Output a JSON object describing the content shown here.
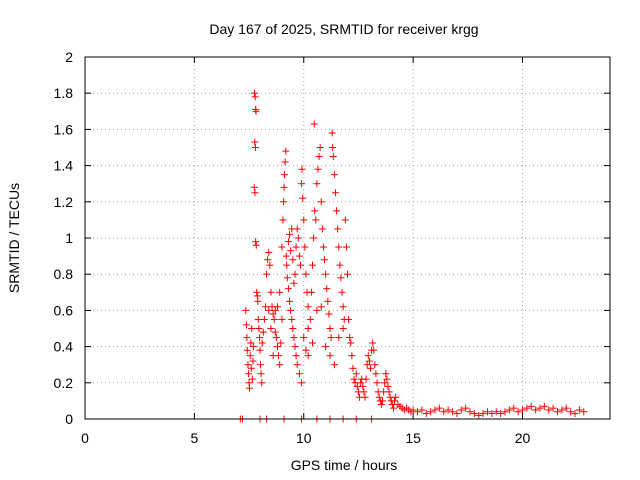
{
  "chart_data": {
    "type": "scatter",
    "title": "Day 167 of 2025, SRMTID for receiver krgg",
    "xlabel": "GPS time / hours",
    "ylabel": "SRMTID / TECUs",
    "xlim": [
      0,
      24
    ],
    "ylim": [
      0,
      2
    ],
    "xticks": [
      0,
      5,
      10,
      15,
      20
    ],
    "xtick_labels": [
      "0",
      "5",
      "10",
      "15",
      "20"
    ],
    "yticks": [
      0,
      0.2,
      0.4,
      0.6,
      0.8,
      1,
      1.2,
      1.4,
      1.6,
      1.8,
      2
    ],
    "ytick_labels": [
      "0",
      "0.2",
      "0.4",
      "0.6",
      "0.8",
      "1",
      "1.2",
      "1.4",
      "1.6",
      "1.8",
      "2"
    ],
    "grid": true,
    "marker": "+",
    "color": "#ff0000",
    "series": [
      {
        "name": "SRMTID",
        "points": [
          [
            7.1,
            0.0
          ],
          [
            7.2,
            0.0
          ],
          [
            8.0,
            0.0
          ],
          [
            8.3,
            0.0
          ],
          [
            9.1,
            0.0
          ],
          [
            9.9,
            0.0
          ],
          [
            10.6,
            0.0
          ],
          [
            11.2,
            0.0
          ],
          [
            11.8,
            0.0
          ],
          [
            12.4,
            0.0
          ],
          [
            13.1,
            0.0
          ],
          [
            7.35,
            0.6
          ],
          [
            7.38,
            0.52
          ],
          [
            7.4,
            0.45
          ],
          [
            7.42,
            0.38
          ],
          [
            7.45,
            0.3
          ],
          [
            7.48,
            0.25
          ],
          [
            7.5,
            0.2
          ],
          [
            7.52,
            0.17
          ],
          [
            7.55,
            0.35
          ],
          [
            7.58,
            0.42
          ],
          [
            7.6,
            0.28
          ],
          [
            7.62,
            0.5
          ],
          [
            7.65,
            0.22
          ],
          [
            7.68,
            0.32
          ],
          [
            7.7,
            0.4
          ],
          [
            7.75,
            1.8
          ],
          [
            7.78,
            1.78
          ],
          [
            7.8,
            1.71
          ],
          [
            7.82,
            1.7
          ],
          [
            7.76,
            1.53
          ],
          [
            7.79,
            1.5
          ],
          [
            7.74,
            1.28
          ],
          [
            7.77,
            1.25
          ],
          [
            7.8,
            0.98
          ],
          [
            7.83,
            0.96
          ],
          [
            7.85,
            0.7
          ],
          [
            7.88,
            0.68
          ],
          [
            7.9,
            0.65
          ],
          [
            7.92,
            0.55
          ],
          [
            7.95,
            0.5
          ],
          [
            7.98,
            0.45
          ],
          [
            8.0,
            0.38
          ],
          [
            8.02,
            0.3
          ],
          [
            8.05,
            0.25
          ],
          [
            8.08,
            0.2
          ],
          [
            8.1,
            0.42
          ],
          [
            8.15,
            0.48
          ],
          [
            8.2,
            0.55
          ],
          [
            8.25,
            0.62
          ],
          [
            8.3,
            0.8
          ],
          [
            8.35,
            0.88
          ],
          [
            8.4,
            0.92
          ],
          [
            8.45,
            0.85
          ],
          [
            8.5,
            0.7
          ],
          [
            8.55,
            0.62
          ],
          [
            8.6,
            0.58
          ],
          [
            8.65,
            0.55
          ],
          [
            8.7,
            0.48
          ],
          [
            8.75,
            0.45
          ],
          [
            8.8,
            0.4
          ],
          [
            8.85,
            0.35
          ],
          [
            8.9,
            0.3
          ],
          [
            8.95,
            0.42
          ],
          [
            9.0,
            0.55
          ],
          [
            8.4,
            0.6
          ],
          [
            8.5,
            0.5
          ],
          [
            8.6,
            0.35
          ],
          [
            8.7,
            0.6
          ],
          [
            8.8,
            0.62
          ],
          [
            8.9,
            0.7
          ],
          [
            9.0,
            0.95
          ],
          [
            9.05,
            1.1
          ],
          [
            9.08,
            1.2
          ],
          [
            9.1,
            1.28
          ],
          [
            9.12,
            1.35
          ],
          [
            9.15,
            1.42
          ],
          [
            9.18,
            1.48
          ],
          [
            9.2,
            0.9
          ],
          [
            9.22,
            0.85
          ],
          [
            9.25,
            0.78
          ],
          [
            9.3,
            0.72
          ],
          [
            9.35,
            0.65
          ],
          [
            9.4,
            0.6
          ],
          [
            9.45,
            0.55
          ],
          [
            9.5,
            0.5
          ],
          [
            9.55,
            0.45
          ],
          [
            9.6,
            0.4
          ],
          [
            9.65,
            0.35
          ],
          [
            9.3,
            0.98
          ],
          [
            9.35,
            1.02
          ],
          [
            9.4,
            0.93
          ],
          [
            9.45,
            1.05
          ],
          [
            9.5,
            0.88
          ],
          [
            9.55,
            0.75
          ],
          [
            9.6,
            0.8
          ],
          [
            9.65,
            0.95
          ],
          [
            9.7,
            1.05
          ],
          [
            9.75,
            1.0
          ],
          [
            9.8,
            0.9
          ],
          [
            9.85,
            0.85
          ],
          [
            9.9,
            1.3
          ],
          [
            9.92,
            1.38
          ],
          [
            9.95,
            1.22
          ],
          [
            10.0,
            1.1
          ],
          [
            10.05,
            0.95
          ],
          [
            10.1,
            0.8
          ],
          [
            10.15,
            0.7
          ],
          [
            10.2,
            0.62
          ],
          [
            9.7,
            0.3
          ],
          [
            9.8,
            0.25
          ],
          [
            9.9,
            0.2
          ],
          [
            10.0,
            0.45
          ],
          [
            10.1,
            0.38
          ],
          [
            10.2,
            0.5
          ],
          [
            10.3,
            0.55
          ],
          [
            10.35,
            0.7
          ],
          [
            10.4,
            0.85
          ],
          [
            10.45,
            1.0
          ],
          [
            10.48,
            1.63
          ],
          [
            10.5,
            1.15
          ],
          [
            10.55,
            1.1
          ],
          [
            10.6,
            1.3
          ],
          [
            10.65,
            1.38
          ],
          [
            10.7,
            1.45
          ],
          [
            10.75,
            1.5
          ],
          [
            10.8,
            1.2
          ],
          [
            10.85,
            1.05
          ],
          [
            10.9,
            0.95
          ],
          [
            10.95,
            0.88
          ],
          [
            11.0,
            0.8
          ],
          [
            11.05,
            0.72
          ],
          [
            11.1,
            0.65
          ],
          [
            11.15,
            0.58
          ],
          [
            11.2,
            0.5
          ],
          [
            11.25,
            0.45
          ],
          [
            11.3,
            1.58
          ],
          [
            11.32,
            1.5
          ],
          [
            11.35,
            1.45
          ],
          [
            11.4,
            1.35
          ],
          [
            11.45,
            1.25
          ],
          [
            11.5,
            1.15
          ],
          [
            11.55,
            1.05
          ],
          [
            11.6,
            0.95
          ],
          [
            11.65,
            0.85
          ],
          [
            11.7,
            0.78
          ],
          [
            11.75,
            0.7
          ],
          [
            11.8,
            0.62
          ],
          [
            11.85,
            0.55
          ],
          [
            10.2,
            0.35
          ],
          [
            10.4,
            0.42
          ],
          [
            10.6,
            0.6
          ],
          [
            10.8,
            0.62
          ],
          [
            11.0,
            0.4
          ],
          [
            11.2,
            0.35
          ],
          [
            11.4,
            0.3
          ],
          [
            11.6,
            0.45
          ],
          [
            11.8,
            0.5
          ],
          [
            11.9,
            1.1
          ],
          [
            11.95,
            0.95
          ],
          [
            12.0,
            0.8
          ],
          [
            12.05,
            0.55
          ],
          [
            12.1,
            0.45
          ],
          [
            12.15,
            0.42
          ],
          [
            12.2,
            0.35
          ],
          [
            12.25,
            0.28
          ],
          [
            12.3,
            0.22
          ],
          [
            12.35,
            0.2
          ],
          [
            12.4,
            0.25
          ],
          [
            12.45,
            0.18
          ],
          [
            12.5,
            0.15
          ],
          [
            12.55,
            0.12
          ],
          [
            12.6,
            0.2
          ],
          [
            12.65,
            0.22
          ],
          [
            12.7,
            0.18
          ],
          [
            12.75,
            0.15
          ],
          [
            12.8,
            0.12
          ],
          [
            12.85,
            0.22
          ],
          [
            12.9,
            0.3
          ],
          [
            12.95,
            0.35
          ],
          [
            13.0,
            0.32
          ],
          [
            13.05,
            0.28
          ],
          [
            13.1,
            0.38
          ],
          [
            13.15,
            0.42
          ],
          [
            13.2,
            0.38
          ],
          [
            13.25,
            0.3
          ],
          [
            13.3,
            0.25
          ],
          [
            13.35,
            0.2
          ],
          [
            13.4,
            0.15
          ],
          [
            13.45,
            0.12
          ],
          [
            13.5,
            0.1
          ],
          [
            13.55,
            0.08
          ],
          [
            13.6,
            0.1
          ],
          [
            13.65,
            0.15
          ],
          [
            13.7,
            0.2
          ],
          [
            13.75,
            0.25
          ],
          [
            13.8,
            0.22
          ],
          [
            13.85,
            0.18
          ],
          [
            13.9,
            0.15
          ],
          [
            13.95,
            0.12
          ],
          [
            14.0,
            0.1
          ],
          [
            14.05,
            0.08
          ],
          [
            14.1,
            0.06
          ],
          [
            14.15,
            0.1
          ],
          [
            14.2,
            0.12
          ],
          [
            14.3,
            0.08
          ],
          [
            14.4,
            0.07
          ],
          [
            14.5,
            0.06
          ],
          [
            14.6,
            0.05
          ],
          [
            14.7,
            0.06
          ],
          [
            14.8,
            0.05
          ],
          [
            14.9,
            0.04
          ],
          [
            15.0,
            0.05
          ],
          [
            15.2,
            0.04
          ],
          [
            15.4,
            0.05
          ],
          [
            15.6,
            0.03
          ],
          [
            15.8,
            0.04
          ],
          [
            16.0,
            0.05
          ],
          [
            16.2,
            0.06
          ],
          [
            16.4,
            0.04
          ],
          [
            16.6,
            0.05
          ],
          [
            16.8,
            0.04
          ],
          [
            17.0,
            0.03
          ],
          [
            17.2,
            0.05
          ],
          [
            17.4,
            0.06
          ],
          [
            17.6,
            0.04
          ],
          [
            17.8,
            0.03
          ],
          [
            18.0,
            0.02
          ],
          [
            18.2,
            0.03
          ],
          [
            18.4,
            0.04
          ],
          [
            18.6,
            0.03
          ],
          [
            18.8,
            0.04
          ],
          [
            19.0,
            0.03
          ],
          [
            19.2,
            0.04
          ],
          [
            19.4,
            0.05
          ],
          [
            19.6,
            0.06
          ],
          [
            19.8,
            0.04
          ],
          [
            20.0,
            0.05
          ],
          [
            20.2,
            0.06
          ],
          [
            20.4,
            0.07
          ],
          [
            20.6,
            0.05
          ],
          [
            20.8,
            0.06
          ],
          [
            21.0,
            0.07
          ],
          [
            21.2,
            0.05
          ],
          [
            21.4,
            0.06
          ],
          [
            21.6,
            0.04
          ],
          [
            21.8,
            0.05
          ],
          [
            22.0,
            0.06
          ],
          [
            22.2,
            0.04
          ],
          [
            22.4,
            0.03
          ],
          [
            22.6,
            0.05
          ],
          [
            22.8,
            0.04
          ]
        ]
      }
    ]
  }
}
